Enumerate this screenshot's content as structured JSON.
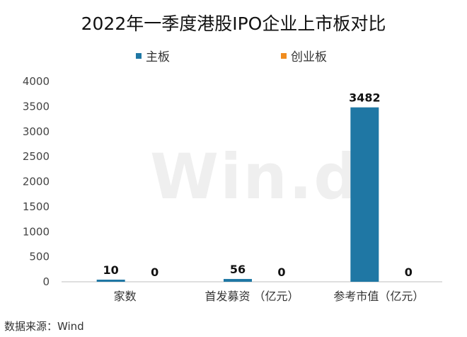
{
  "chart_data": {
    "type": "bar",
    "title": "2022年一季度港股IPO企业上市板对比",
    "categories": [
      "家数",
      "首发募资 （亿元）",
      "参考市值（亿元）"
    ],
    "series": [
      {
        "name": "主板",
        "values": [
          10,
          56,
          3482
        ],
        "color": "#1f77a4"
      },
      {
        "name": "创业板",
        "values": [
          0,
          0,
          0
        ],
        "color": "#f08c1e"
      }
    ],
    "ylim": [
      0,
      4000
    ],
    "yticks": [
      0,
      500,
      1000,
      1500,
      2000,
      2500,
      3000,
      3500,
      4000
    ],
    "xlabel": "",
    "ylabel": "",
    "grid": false,
    "legend_position": "top-center"
  },
  "watermark": "Win.d",
  "source": "数据来源：Wind"
}
